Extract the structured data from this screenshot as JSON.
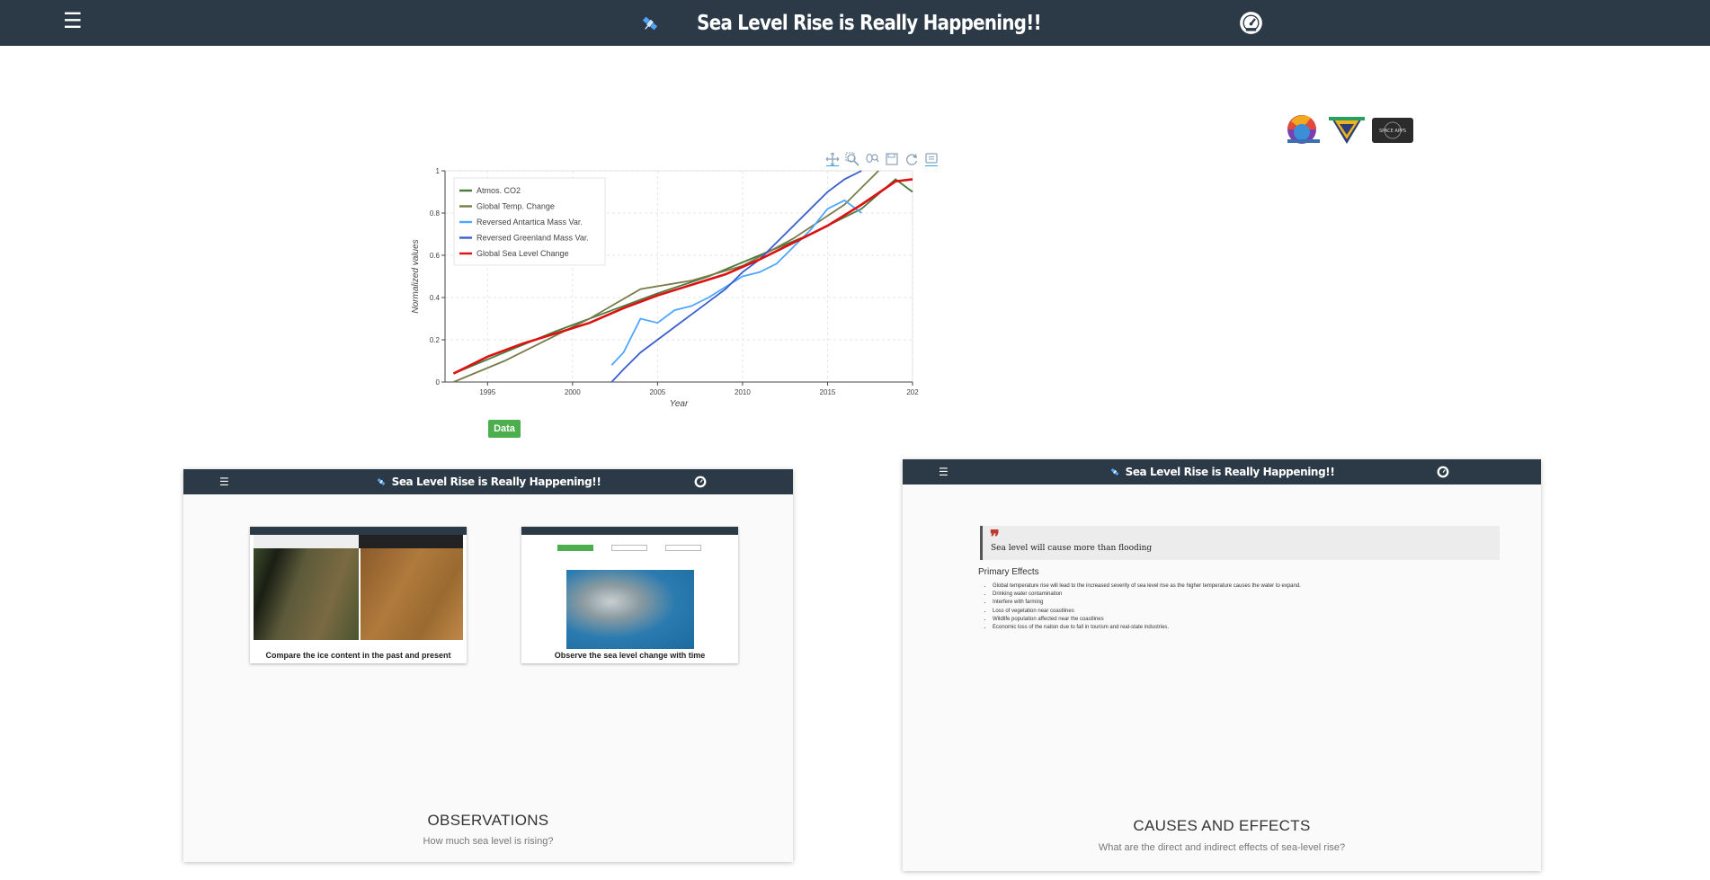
{
  "header": {
    "title": "Sea Level Rise is Really Happening!!",
    "menu_icon": "hamburger-icon",
    "dashboard_icon": "gauge-icon",
    "satellite_icon": "satellite-icon",
    "background_color": "#2c3a47"
  },
  "partner_logos": [
    "logo-circle-earth",
    "logo-triangle-badge",
    "logo-space-apps"
  ],
  "chart_data": {
    "type": "line",
    "title": "",
    "xlabel": "Year",
    "ylabel": "Normalized values",
    "xlim": [
      1992.5,
      2020
    ],
    "ylim": [
      0,
      1
    ],
    "x_ticks": [
      "1995",
      "2000",
      "2005",
      "2010",
      "2015",
      "202"
    ],
    "y_ticks": [
      "0",
      "0.2",
      "0.4",
      "0.6",
      "0.8",
      "1"
    ],
    "legend_position": "top-left",
    "series": [
      {
        "name": "Atmos. CO2",
        "color": "#4a7a3d",
        "x": [
          1993,
          1996,
          1999,
          2002,
          2005,
          2008,
          2011,
          2014,
          2017,
          2019,
          2020
        ],
        "y": [
          0.04,
          0.14,
          0.24,
          0.33,
          0.42,
          0.5,
          0.6,
          0.7,
          0.82,
          0.96,
          0.9
        ]
      },
      {
        "name": "Global Temp. Change",
        "color": "#7a7a4a",
        "x": [
          1993,
          1996,
          1999,
          2001,
          2004,
          2007,
          2010,
          2013,
          2016,
          2018
        ],
        "y": [
          0.0,
          0.1,
          0.22,
          0.3,
          0.44,
          0.48,
          0.55,
          0.68,
          0.84,
          1.0
        ]
      },
      {
        "name": "Reversed Antartica Mass Var.",
        "color": "#4da6ff",
        "x": [
          2002.3,
          2003,
          2004,
          2005,
          2006,
          2007,
          2008,
          2009,
          2010,
          2011,
          2012,
          2013,
          2014,
          2015,
          2016,
          2017
        ],
        "y": [
          0.08,
          0.14,
          0.3,
          0.28,
          0.34,
          0.36,
          0.4,
          0.45,
          0.5,
          0.52,
          0.56,
          0.64,
          0.72,
          0.82,
          0.86,
          0.8
        ]
      },
      {
        "name": "Reversed Greenland Mass Var.",
        "color": "#3a5fcd",
        "x": [
          2002.3,
          2003,
          2004,
          2005,
          2006,
          2007,
          2008,
          2009,
          2010,
          2011,
          2012,
          2013,
          2014,
          2015,
          2016,
          2017
        ],
        "y": [
          0.0,
          0.06,
          0.14,
          0.2,
          0.26,
          0.32,
          0.38,
          0.44,
          0.52,
          0.58,
          0.66,
          0.74,
          0.82,
          0.9,
          0.96,
          1.0
        ]
      },
      {
        "name": "Global Sea Level Change",
        "color": "#dd1111",
        "x": [
          1993,
          1995,
          1997,
          1999,
          2001,
          2003,
          2005,
          2007,
          2009,
          2011,
          2013,
          2015,
          2017,
          2019,
          2020
        ],
        "y": [
          0.04,
          0.12,
          0.18,
          0.23,
          0.28,
          0.35,
          0.41,
          0.46,
          0.51,
          0.58,
          0.66,
          0.74,
          0.84,
          0.95,
          0.96
        ]
      }
    ]
  },
  "chart_tools": [
    "pan-icon",
    "box-zoom-icon",
    "wheel-zoom-icon",
    "save-icon",
    "reset-icon",
    "hover-icon"
  ],
  "data_button": "Data",
  "cards": {
    "observations": {
      "title": "OBSERVATIONS",
      "subtitle": "How much sea level is rising?",
      "thumbnails": [
        {
          "caption": "Compare the ice content in the past and present"
        },
        {
          "caption": "Observe the sea level change with time"
        }
      ]
    },
    "causes": {
      "title": "CAUSES AND EFFECTS",
      "subtitle": "What are the direct and indirect effects of sea-level rise?",
      "quote": "Sea level will cause more than flooding",
      "primary_heading": "Primary Effects",
      "effects": [
        "Global temperature rise will lead to the increased severity of sea level rise as the higher temperature causes the water to expand.",
        "Drinking water contamination",
        "Interfere with farming",
        "Loss of vegetation near coastlines",
        "Wildlife population affected near the coastlines",
        "Economic loss of the nation due to fall in tourism and real-state industries."
      ]
    }
  }
}
